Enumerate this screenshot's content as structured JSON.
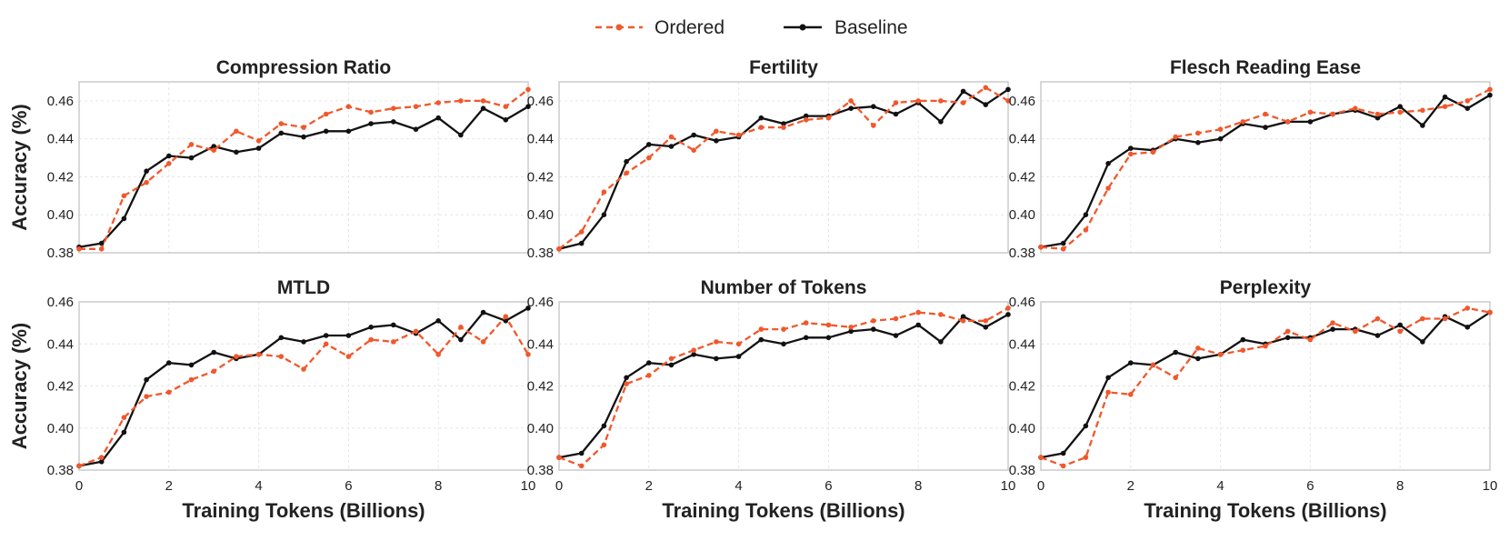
{
  "legend": {
    "items": [
      {
        "label": "Ordered",
        "color": "#f0582c",
        "dash": true
      },
      {
        "label": "Baseline",
        "color": "#111111",
        "dash": false
      }
    ],
    "placement": "top-center"
  },
  "chart_data": [
    {
      "type": "line",
      "title": "Compression Ratio",
      "xlabel": "",
      "ylabel": "Accuracy (%)",
      "xlim": [
        0,
        10
      ],
      "ylim": [
        0.38,
        0.47
      ],
      "xticks": [
        0,
        2,
        4,
        6,
        8,
        10
      ],
      "yticks": [
        0.38,
        0.4,
        0.42,
        0.44,
        0.46
      ],
      "grid": true,
      "x": [
        0,
        0.5,
        1,
        1.5,
        2,
        2.5,
        3,
        3.5,
        4,
        4.5,
        5,
        5.5,
        6,
        6.5,
        7,
        7.5,
        8,
        8.5,
        9,
        9.5,
        10
      ],
      "series": [
        {
          "name": "Ordered",
          "color": "#f0582c",
          "values": [
            0.382,
            0.382,
            0.41,
            0.417,
            0.427,
            0.437,
            0.434,
            0.444,
            0.439,
            0.448,
            0.446,
            0.453,
            0.457,
            0.454,
            0.456,
            0.457,
            0.459,
            0.46,
            0.46,
            0.457,
            0.466
          ]
        },
        {
          "name": "Baseline",
          "color": "#111111",
          "values": [
            0.383,
            0.385,
            0.398,
            0.423,
            0.431,
            0.43,
            0.436,
            0.433,
            0.435,
            0.443,
            0.441,
            0.444,
            0.444,
            0.448,
            0.449,
            0.445,
            0.451,
            0.442,
            0.456,
            0.45,
            0.457
          ]
        }
      ]
    },
    {
      "type": "line",
      "title": "Fertility",
      "xlabel": "",
      "ylabel": "",
      "xlim": [
        0,
        10
      ],
      "ylim": [
        0.38,
        0.47
      ],
      "xticks": [
        0,
        2,
        4,
        6,
        8,
        10
      ],
      "yticks": [
        0.38,
        0.4,
        0.42,
        0.44,
        0.46
      ],
      "grid": true,
      "x": [
        0,
        0.5,
        1,
        1.5,
        2,
        2.5,
        3,
        3.5,
        4,
        4.5,
        5,
        5.5,
        6,
        6.5,
        7,
        7.5,
        8,
        8.5,
        9,
        9.5,
        10
      ],
      "series": [
        {
          "name": "Ordered",
          "color": "#f0582c",
          "values": [
            0.382,
            0.391,
            0.412,
            0.422,
            0.43,
            0.441,
            0.434,
            0.444,
            0.442,
            0.446,
            0.446,
            0.45,
            0.451,
            0.46,
            0.447,
            0.459,
            0.46,
            0.46,
            0.459,
            0.467,
            0.46
          ]
        },
        {
          "name": "Baseline",
          "color": "#111111",
          "values": [
            0.382,
            0.385,
            0.4,
            0.428,
            0.437,
            0.436,
            0.442,
            0.439,
            0.441,
            0.451,
            0.448,
            0.452,
            0.452,
            0.456,
            0.457,
            0.453,
            0.459,
            0.449,
            0.465,
            0.458,
            0.466
          ]
        }
      ]
    },
    {
      "type": "line",
      "title": "Flesch Reading Ease",
      "xlabel": "",
      "ylabel": "",
      "xlim": [
        0,
        10
      ],
      "ylim": [
        0.38,
        0.47
      ],
      "xticks": [
        0,
        2,
        4,
        6,
        8,
        10
      ],
      "yticks": [
        0.38,
        0.4,
        0.42,
        0.44,
        0.46
      ],
      "grid": true,
      "x": [
        0,
        0.5,
        1,
        1.5,
        2,
        2.5,
        3,
        3.5,
        4,
        4.5,
        5,
        5.5,
        6,
        6.5,
        7,
        7.5,
        8,
        8.5,
        9,
        9.5,
        10
      ],
      "series": [
        {
          "name": "Ordered",
          "color": "#f0582c",
          "values": [
            0.383,
            0.382,
            0.392,
            0.414,
            0.432,
            0.433,
            0.441,
            0.443,
            0.445,
            0.449,
            0.453,
            0.449,
            0.454,
            0.453,
            0.456,
            0.453,
            0.454,
            0.455,
            0.457,
            0.46,
            0.466
          ]
        },
        {
          "name": "Baseline",
          "color": "#111111",
          "values": [
            0.383,
            0.385,
            0.4,
            0.427,
            0.435,
            0.434,
            0.44,
            0.438,
            0.44,
            0.448,
            0.446,
            0.449,
            0.449,
            0.453,
            0.455,
            0.451,
            0.457,
            0.447,
            0.462,
            0.456,
            0.463
          ]
        }
      ]
    },
    {
      "type": "line",
      "title": "MTLD",
      "xlabel": "Training Tokens (Billions)",
      "ylabel": "Accuracy (%)",
      "xlim": [
        0,
        10
      ],
      "ylim": [
        0.38,
        0.46
      ],
      "xticks": [
        0,
        2,
        4,
        6,
        8,
        10
      ],
      "yticks": [
        0.38,
        0.4,
        0.42,
        0.44,
        0.46
      ],
      "grid": true,
      "x": [
        0,
        0.5,
        1,
        1.5,
        2,
        2.5,
        3,
        3.5,
        4,
        4.5,
        5,
        5.5,
        6,
        6.5,
        7,
        7.5,
        8,
        8.5,
        9,
        9.5,
        10
      ],
      "series": [
        {
          "name": "Ordered",
          "color": "#f0582c",
          "values": [
            0.382,
            0.386,
            0.405,
            0.415,
            0.417,
            0.423,
            0.427,
            0.434,
            0.435,
            0.434,
            0.428,
            0.44,
            0.434,
            0.442,
            0.441,
            0.446,
            0.435,
            0.448,
            0.441,
            0.453,
            0.435
          ]
        },
        {
          "name": "Baseline",
          "color": "#111111",
          "values": [
            0.382,
            0.384,
            0.398,
            0.423,
            0.431,
            0.43,
            0.436,
            0.433,
            0.435,
            0.443,
            0.441,
            0.444,
            0.444,
            0.448,
            0.449,
            0.445,
            0.451,
            0.442,
            0.455,
            0.451,
            0.457
          ]
        }
      ]
    },
    {
      "type": "line",
      "title": "Number of Tokens",
      "xlabel": "Training Tokens (Billions)",
      "ylabel": "",
      "xlim": [
        0,
        10
      ],
      "ylim": [
        0.38,
        0.46
      ],
      "xticks": [
        0,
        2,
        4,
        6,
        8,
        10
      ],
      "yticks": [
        0.38,
        0.4,
        0.42,
        0.44,
        0.46
      ],
      "grid": true,
      "x": [
        0,
        0.5,
        1,
        1.5,
        2,
        2.5,
        3,
        3.5,
        4,
        4.5,
        5,
        5.5,
        6,
        6.5,
        7,
        7.5,
        8,
        8.5,
        9,
        9.5,
        10
      ],
      "series": [
        {
          "name": "Ordered",
          "color": "#f0582c",
          "values": [
            0.386,
            0.382,
            0.392,
            0.421,
            0.425,
            0.433,
            0.437,
            0.441,
            0.44,
            0.447,
            0.447,
            0.45,
            0.449,
            0.448,
            0.451,
            0.452,
            0.455,
            0.454,
            0.451,
            0.451,
            0.457
          ]
        },
        {
          "name": "Baseline",
          "color": "#111111",
          "values": [
            0.386,
            0.388,
            0.401,
            0.424,
            0.431,
            0.43,
            0.435,
            0.433,
            0.434,
            0.442,
            0.44,
            0.443,
            0.443,
            0.446,
            0.447,
            0.444,
            0.449,
            0.441,
            0.453,
            0.448,
            0.454
          ]
        }
      ]
    },
    {
      "type": "line",
      "title": "Perplexity",
      "xlabel": "Training Tokens (Billions)",
      "ylabel": "",
      "xlim": [
        0,
        10
      ],
      "ylim": [
        0.38,
        0.46
      ],
      "xticks": [
        0,
        2,
        4,
        6,
        8,
        10
      ],
      "yticks": [
        0.38,
        0.4,
        0.42,
        0.44,
        0.46
      ],
      "grid": true,
      "x": [
        0,
        0.5,
        1,
        1.5,
        2,
        2.5,
        3,
        3.5,
        4,
        4.5,
        5,
        5.5,
        6,
        6.5,
        7,
        7.5,
        8,
        8.5,
        9,
        9.5,
        10
      ],
      "series": [
        {
          "name": "Ordered",
          "color": "#f0582c",
          "values": [
            0.386,
            0.382,
            0.386,
            0.417,
            0.416,
            0.43,
            0.424,
            0.438,
            0.435,
            0.437,
            0.439,
            0.446,
            0.442,
            0.45,
            0.446,
            0.452,
            0.446,
            0.452,
            0.452,
            0.457,
            0.455
          ]
        },
        {
          "name": "Baseline",
          "color": "#111111",
          "values": [
            0.386,
            0.388,
            0.401,
            0.424,
            0.431,
            0.43,
            0.436,
            0.433,
            0.435,
            0.442,
            0.44,
            0.443,
            0.443,
            0.447,
            0.447,
            0.444,
            0.449,
            0.441,
            0.453,
            0.448,
            0.455
          ]
        }
      ]
    }
  ]
}
